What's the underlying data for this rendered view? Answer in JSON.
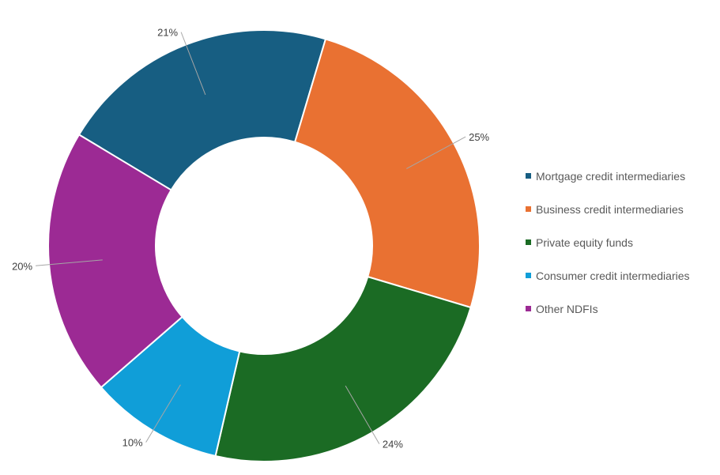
{
  "chart_data": {
    "type": "pie",
    "donut": true,
    "title": "",
    "categories": [
      "Mortgage credit intermediaries",
      "Business credit intermediaries",
      "Private equity funds",
      "Consumer credit intermediaries",
      "Other NDFIs"
    ],
    "values": [
      21,
      25,
      24,
      10,
      20
    ],
    "value_labels": [
      "21%",
      "25%",
      "24%",
      "10%",
      "20%"
    ],
    "colors": [
      "#175e82",
      "#e97132",
      "#1b6b24",
      "#109ed8",
      "#9c2a94"
    ],
    "legend_position": "right"
  }
}
